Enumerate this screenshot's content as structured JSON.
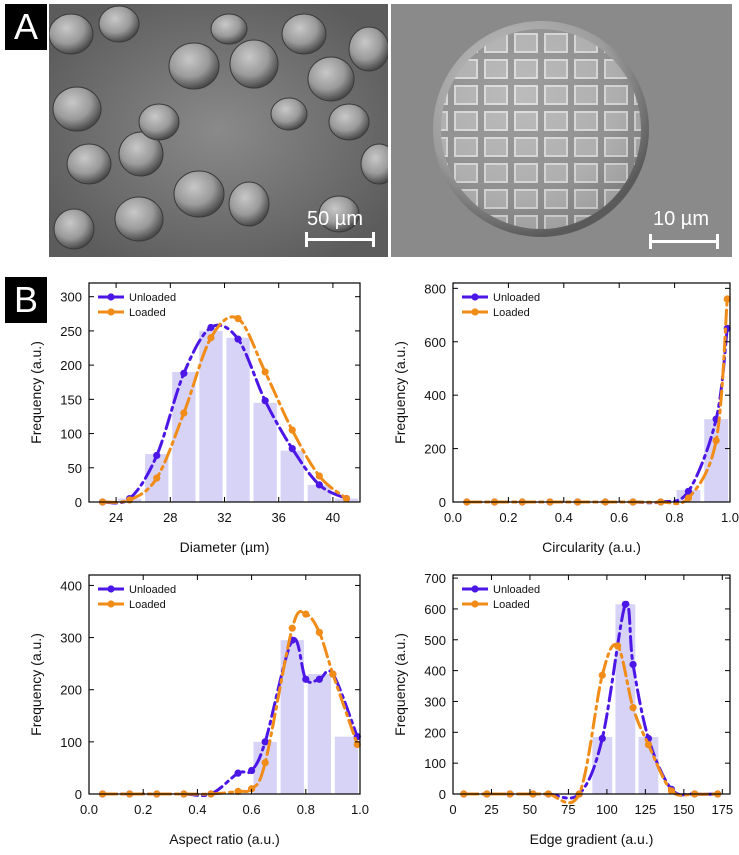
{
  "panels": {
    "a": "A",
    "b": "B"
  },
  "sem": {
    "left_scale": "50 µm",
    "right_scale": "10 µm"
  },
  "colors": {
    "unloaded": "#4b16e6",
    "loaded": "#f08c17",
    "bar": "#d6d3f7"
  },
  "chart_data": [
    {
      "type": "bar",
      "xlabel": "Diameter (µm)",
      "ylabel": "Frequency (a.u.)",
      "xlim": [
        22,
        42
      ],
      "ylim": [
        0,
        320
      ],
      "xticks": [
        24,
        28,
        32,
        36,
        40
      ],
      "yticks": [
        0,
        50,
        100,
        150,
        200,
        250,
        300
      ],
      "legend": "top-left",
      "bars": {
        "x": [
          23,
          25,
          27,
          29,
          31,
          33,
          35,
          37,
          39,
          41
        ],
        "values": [
          0,
          5,
          70,
          190,
          250,
          240,
          145,
          75,
          25,
          5
        ]
      },
      "series": [
        {
          "name": "Unloaded",
          "x": [
            23,
            25,
            27,
            29,
            31,
            33,
            35,
            37,
            39,
            41
          ],
          "values": [
            0,
            5,
            68,
            188,
            255,
            238,
            148,
            78,
            25,
            5
          ]
        },
        {
          "name": "Loaded",
          "x": [
            23,
            25,
            27,
            29,
            31,
            33,
            35,
            37,
            39,
            41
          ],
          "values": [
            0,
            3,
            35,
            130,
            240,
            268,
            190,
            105,
            38,
            5
          ]
        }
      ]
    },
    {
      "type": "bar",
      "xlabel": "Circularity (a.u.)",
      "ylabel": "Frequency (a.u.)",
      "xlim": [
        0,
        1.0
      ],
      "ylim": [
        0,
        820
      ],
      "xticks": [
        0.0,
        0.2,
        0.4,
        0.6,
        0.8,
        1.0
      ],
      "xtick_labels": [
        "0.0",
        "0.2",
        "0.4",
        "0.6",
        "0.8",
        "1.0"
      ],
      "yticks": [
        0,
        200,
        400,
        600,
        800
      ],
      "legend": "top-left",
      "bars": {
        "x": [
          0.85,
          0.95
        ],
        "values": [
          45,
          310
        ]
      },
      "series": [
        {
          "name": "Unloaded",
          "x": [
            0.05,
            0.15,
            0.25,
            0.35,
            0.45,
            0.55,
            0.65,
            0.75,
            0.85,
            0.95,
            0.99
          ],
          "values": [
            0,
            0,
            0,
            0,
            0,
            0,
            0,
            0,
            40,
            310,
            650
          ]
        },
        {
          "name": "Loaded",
          "x": [
            0.05,
            0.15,
            0.25,
            0.35,
            0.45,
            0.55,
            0.65,
            0.75,
            0.85,
            0.95,
            0.99
          ],
          "values": [
            0,
            0,
            0,
            0,
            0,
            0,
            0,
            0,
            15,
            230,
            760
          ]
        }
      ]
    },
    {
      "type": "bar",
      "xlabel": "Aspect ratio (a.u.)",
      "ylabel": "Frequency (a.u.)",
      "xlim": [
        0,
        1.0
      ],
      "ylim": [
        0,
        420
      ],
      "xticks": [
        0.0,
        0.2,
        0.4,
        0.6,
        0.8,
        1.0
      ],
      "xtick_labels": [
        "0.0",
        "0.2",
        "0.4",
        "0.6",
        "0.8",
        "1.0"
      ],
      "yticks": [
        0,
        100,
        200,
        300,
        400
      ],
      "legend": "top-left",
      "bars": {
        "x": [
          0.65,
          0.75,
          0.85,
          0.95
        ],
        "values": [
          100,
          295,
          230,
          110
        ]
      },
      "series": [
        {
          "name": "Unloaded",
          "x": [
            0.05,
            0.15,
            0.25,
            0.35,
            0.45,
            0.55,
            0.6,
            0.65,
            0.75,
            0.8,
            0.85,
            0.9,
            0.99
          ],
          "values": [
            0,
            0,
            0,
            0,
            0,
            40,
            45,
            100,
            295,
            220,
            220,
            230,
            110
          ]
        },
        {
          "name": "Loaded",
          "x": [
            0.05,
            0.15,
            0.25,
            0.35,
            0.45,
            0.55,
            0.6,
            0.65,
            0.75,
            0.8,
            0.85,
            0.9,
            0.99
          ],
          "values": [
            0,
            0,
            0,
            0,
            0,
            5,
            10,
            60,
            318,
            345,
            310,
            230,
            95
          ]
        }
      ]
    },
    {
      "type": "bar",
      "xlabel": "Edge gradient (a.u.)",
      "ylabel": "Frequency (a.u.)",
      "xlim": [
        0,
        180
      ],
      "ylim": [
        0,
        710
      ],
      "xticks": [
        0,
        25,
        50,
        75,
        100,
        125,
        150,
        175
      ],
      "yticks": [
        0,
        100,
        200,
        300,
        400,
        500,
        600,
        700
      ],
      "legend": "top-left",
      "bars": {
        "x": [
          97,
          112,
          127
        ],
        "values": [
          185,
          615,
          185
        ]
      },
      "series": [
        {
          "name": "Unloaded",
          "x": [
            7,
            22,
            37,
            52,
            62,
            82,
            97,
            112,
            117,
            127,
            142,
            157,
            172
          ],
          "values": [
            0,
            0,
            0,
            0,
            0,
            0,
            180,
            615,
            420,
            180,
            15,
            0,
            0
          ]
        },
        {
          "name": "Loaded",
          "x": [
            7,
            22,
            37,
            52,
            62,
            82,
            97,
            107,
            117,
            127,
            142,
            157,
            172
          ],
          "values": [
            0,
            0,
            0,
            0,
            0,
            0,
            385,
            480,
            280,
            160,
            10,
            0,
            0
          ]
        }
      ]
    }
  ]
}
